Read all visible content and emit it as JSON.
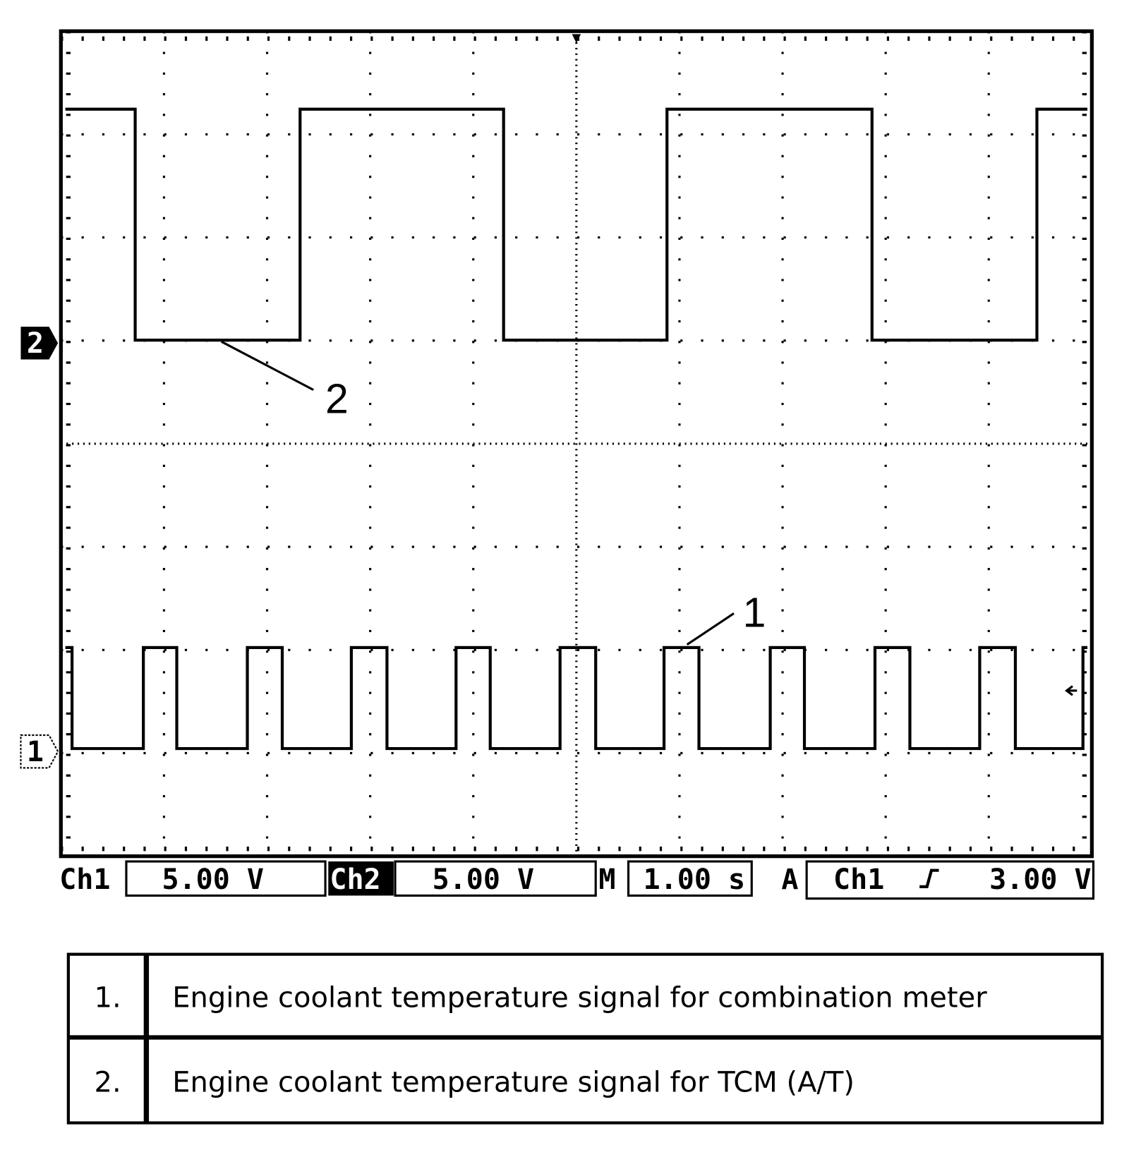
{
  "screen": {
    "trace_labels": [
      "2",
      "1"
    ],
    "channel_markers": [
      "2",
      "1"
    ]
  },
  "status_bar": {
    "ch1_label": "Ch1",
    "ch1_scale": "5.00 V",
    "ch2_label": "Ch2",
    "ch2_scale": "5.00 V",
    "time_label": "M",
    "time_scale": "1.00 s",
    "trigger_label": "A",
    "trigger_source": "Ch1",
    "trigger_level": "3.00 V"
  },
  "table": {
    "rows": [
      [
        "1.",
        "Engine coolant temperature signal for combination meter"
      ],
      [
        "2.",
        "Engine coolant temperature signal for TCM (A/T)"
      ]
    ]
  }
}
